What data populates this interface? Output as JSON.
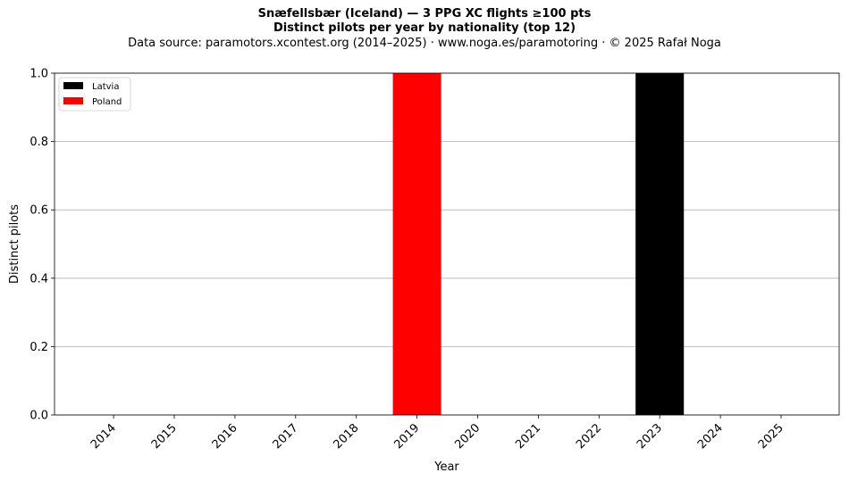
{
  "chart_data": {
    "type": "bar",
    "stacked": true,
    "title_line1": "Snæfellsbær (Iceland)  —  3 PPG XC flights ≥100 pts",
    "title_line2": "Distinct pilots per year by nationality (top 12)",
    "subtitle": "Data source: paramotors.xcontest.org (2014–2025)  ·  www.noga.es/paramotoring  ·  © 2025 Rafał Noga",
    "xlabel": "Year",
    "ylabel": "Distinct pilots",
    "categories": [
      "2014",
      "2015",
      "2016",
      "2017",
      "2018",
      "2019",
      "2020",
      "2021",
      "2022",
      "2023",
      "2024",
      "2025"
    ],
    "ylim": [
      0,
      1.0
    ],
    "yticks": [
      "0.0",
      "0.2",
      "0.4",
      "0.6",
      "0.8",
      "1.0"
    ],
    "grid": "horizontal",
    "legend_position": "top-left",
    "series": [
      {
        "name": "Latvia",
        "color": "#000000",
        "values": [
          0,
          0,
          0,
          0,
          0,
          0,
          0,
          0,
          0,
          1,
          0,
          0
        ]
      },
      {
        "name": "Poland",
        "color": "#ff0000",
        "values": [
          0,
          0,
          0,
          0,
          0,
          1,
          0,
          0,
          0,
          0,
          0,
          0
        ]
      }
    ]
  }
}
